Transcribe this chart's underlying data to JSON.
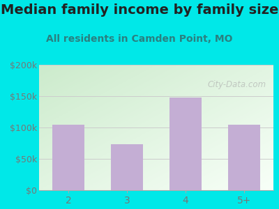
{
  "title": "Median family income by family size",
  "subtitle": "All residents in Camden Point, MO",
  "categories": [
    "2",
    "3",
    "4",
    "5+"
  ],
  "values": [
    105000,
    73000,
    148000,
    105000
  ],
  "bar_color": "#c4aed4",
  "background_outer": "#00e8e8",
  "grad_color_topleft": "#d4edd4",
  "grad_color_bottomright": "#f0faf0",
  "title_color": "#222222",
  "subtitle_color": "#2a8080",
  "tick_color": "#777777",
  "grid_color": "#cccccc",
  "ylim": [
    0,
    200000
  ],
  "yticks": [
    0,
    50000,
    100000,
    150000,
    200000
  ],
  "ytick_labels": [
    "$0",
    "$50k",
    "$100k",
    "$150k",
    "$200k"
  ],
  "watermark": "City-Data.com",
  "title_fontsize": 14,
  "subtitle_fontsize": 10,
  "tick_fontsize": 9
}
